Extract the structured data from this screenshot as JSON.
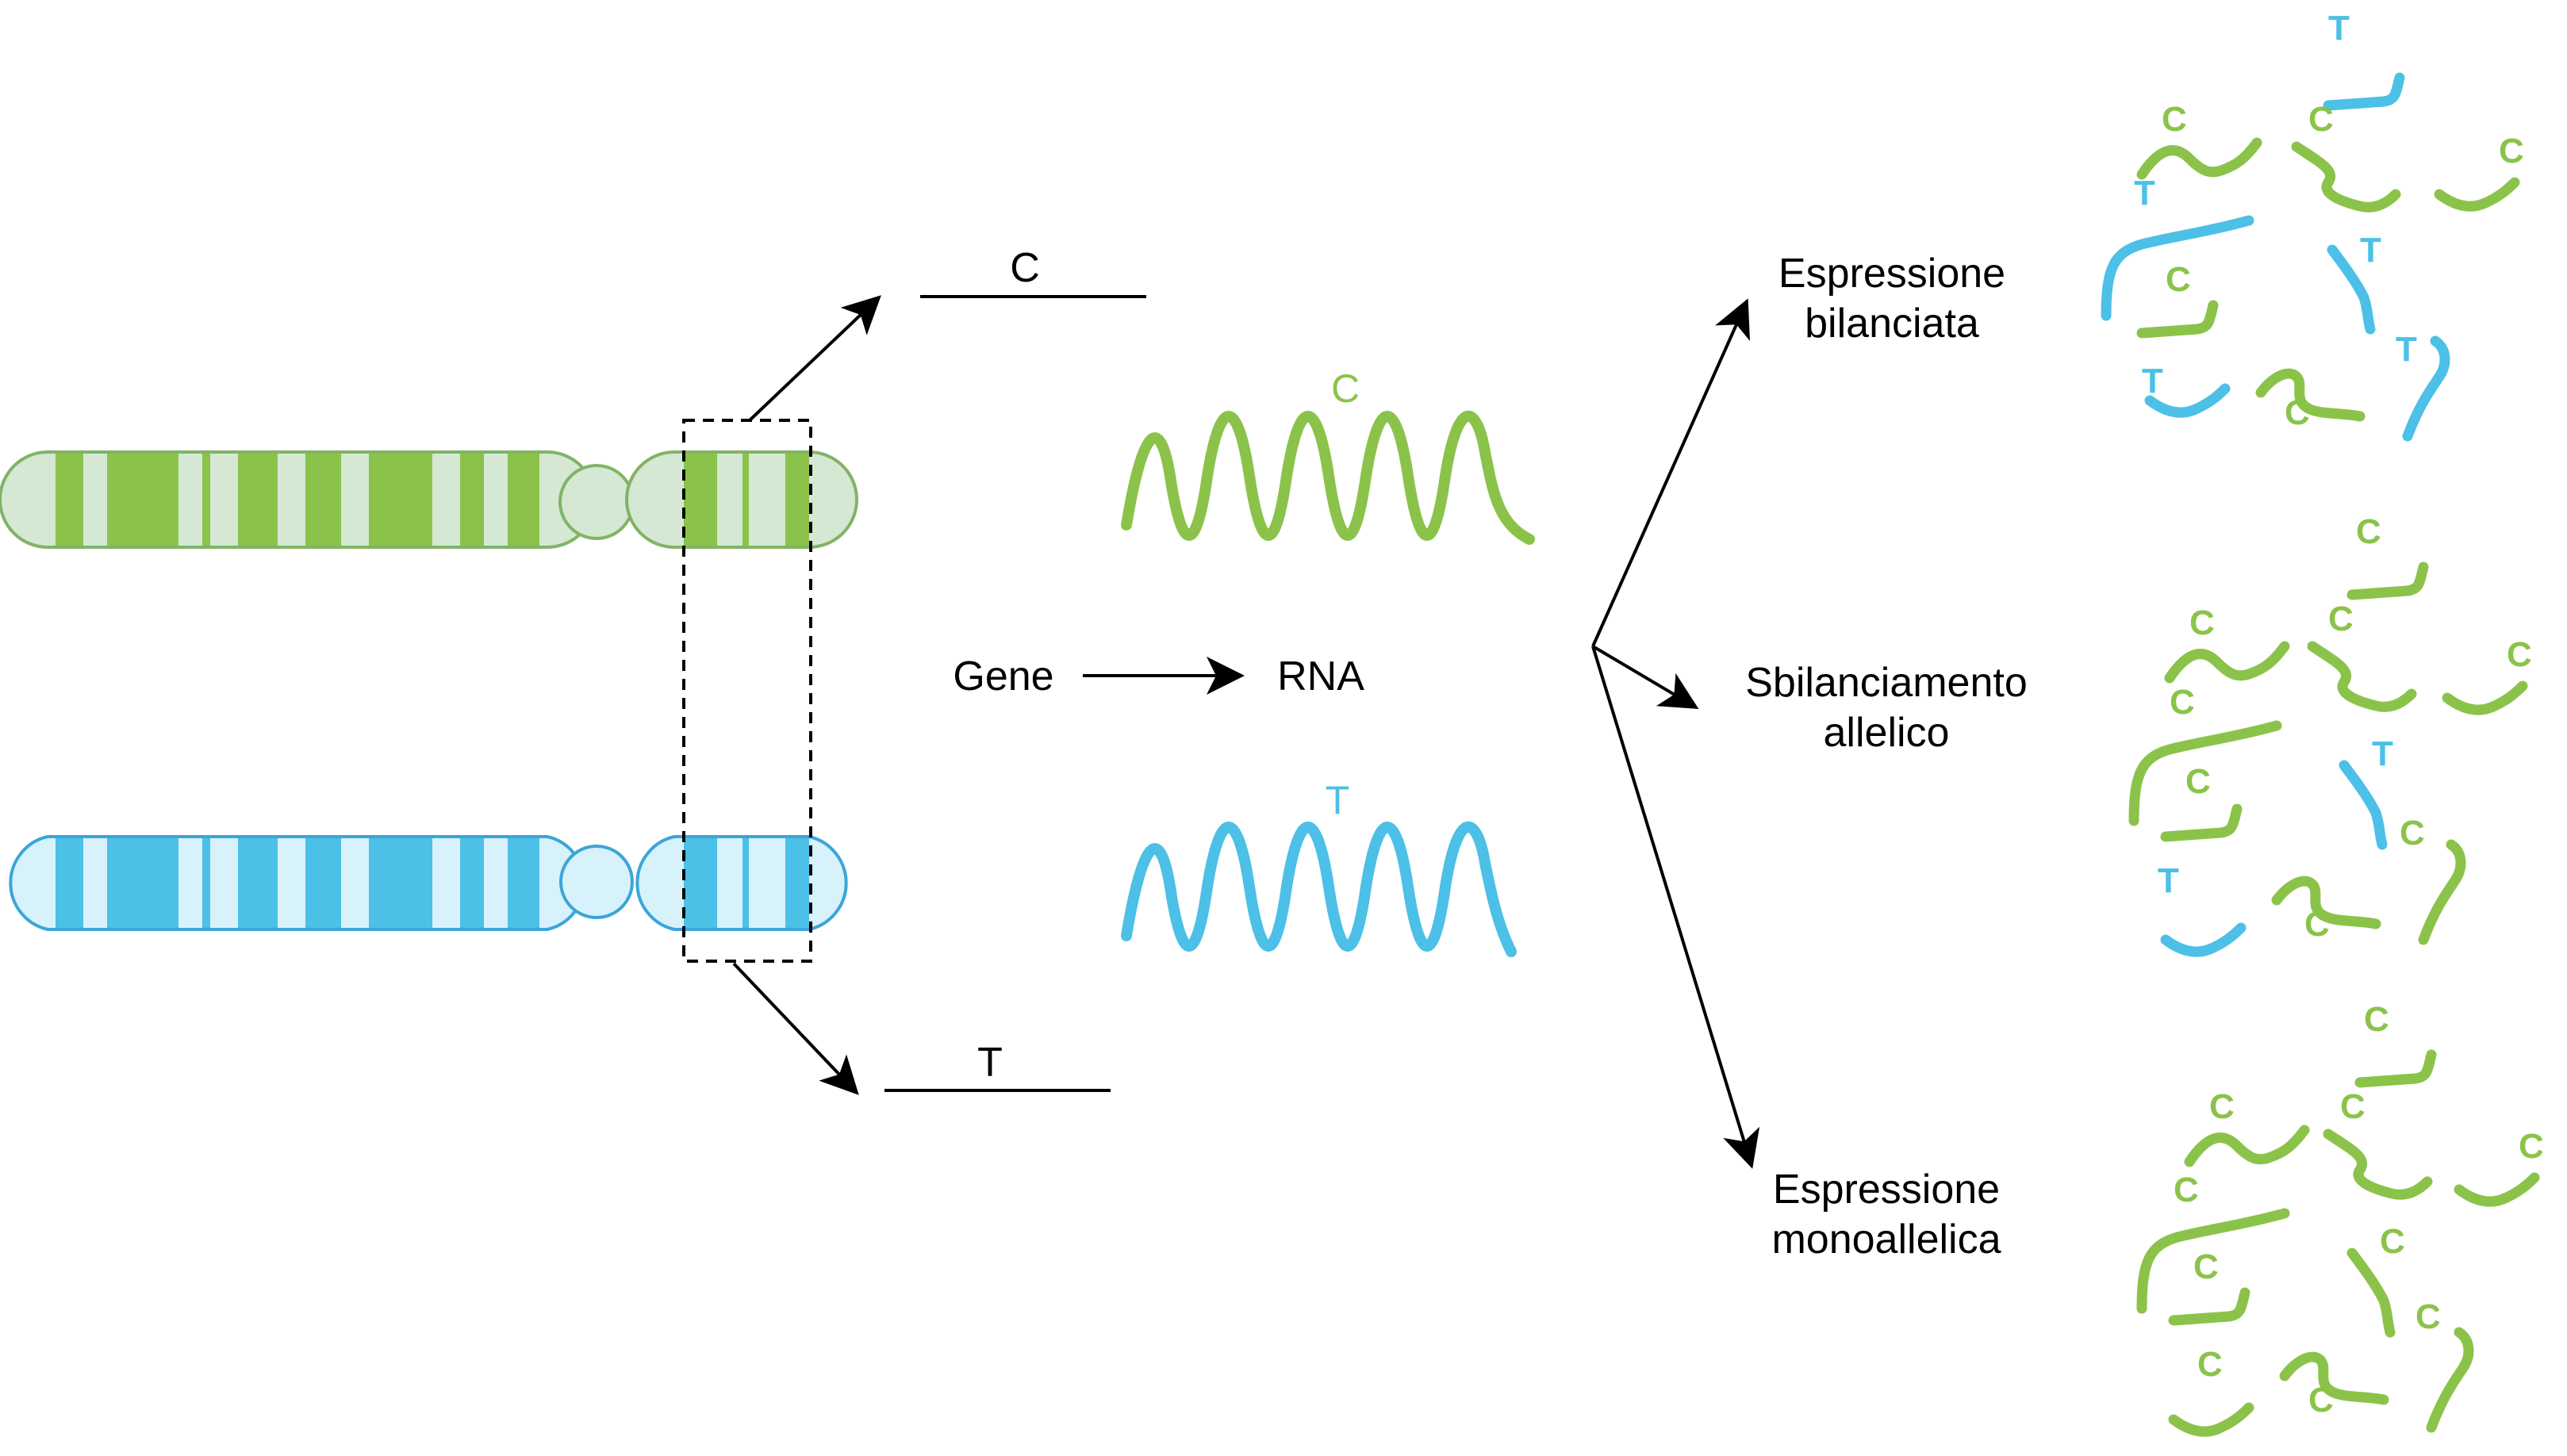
{
  "colors": {
    "green": "#8BC34A",
    "green_light": "#D5E8D4",
    "green_border": "#82B366",
    "blue": "#4CC0E6",
    "blue_light": "#D7F2FB",
    "blue_border": "#3CA5D8",
    "line": "#000000"
  },
  "alleles": {
    "top": "C",
    "bottom": "T"
  },
  "flow": {
    "gene": "Gene",
    "rna": "RNA"
  },
  "outcomes": [
    {
      "line1": "Espressione",
      "line2": "bilanciata"
    },
    {
      "line1": "Sbilanciamento",
      "line2": "allelico"
    },
    {
      "line1": "Espressione",
      "line2": "monoallelica"
    }
  ],
  "icons": {
    "chromosome": "chromosome-icon",
    "rna_wave": "rna-wave-icon",
    "rna_fragment": "rna-fragment-icon"
  }
}
